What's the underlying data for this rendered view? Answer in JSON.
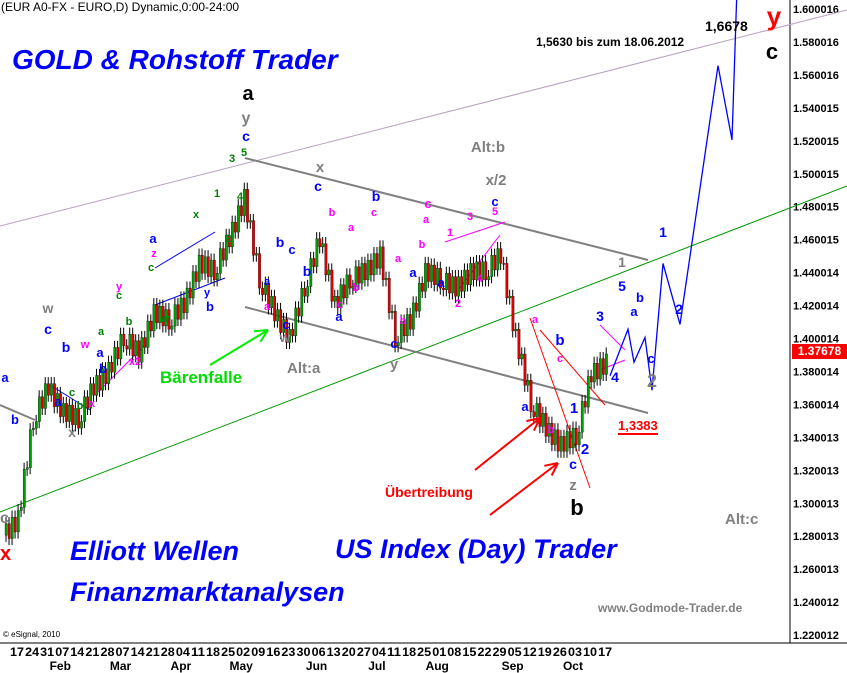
{
  "header": "(EUR A0-FX - EURO,D) Dynamic,0:00-24:00",
  "titles": {
    "main": "GOLD & Rohstoff Trader",
    "elliott": "Elliott Wellen",
    "finanz": "Finanzmarktanalysen",
    "usindex": "US Index (Day) Trader",
    "website": "www.Godmode-Trader.de",
    "copyright": "© eSignal, 2010"
  },
  "colors": {
    "up": "#00a000",
    "down": "#e00000",
    "wave_blue": "#0000ff",
    "magenta": "#ff00ff",
    "grey": "#808080",
    "green": "#008000",
    "channel": "#808080",
    "trend_green": "#009900",
    "projection": "#0000ff",
    "price_label_bg": "#ff0000"
  },
  "chart_data": {
    "type": "candlestick",
    "title": "(EUR A0-FX - EURO,D) Dynamic,0:00-24:00",
    "y_ticks": [
      "1.600016",
      "1.580016",
      "1.560016",
      "1.540015",
      "1.520015",
      "1.500015",
      "1.480015",
      "1.460015",
      "1.440014",
      "1.420014",
      "1.400014",
      "1.380014",
      "1.360014",
      "1.340013",
      "1.320013",
      "1.300013",
      "1.280013",
      "1.260013",
      "1.240012",
      "1.220012"
    ],
    "ylim": [
      1.220012,
      1.600016
    ],
    "x_day_ticks": [
      "17",
      "24",
      "31",
      "07",
      "14",
      "21",
      "28",
      "07",
      "14",
      "21",
      "28",
      "04",
      "11",
      "18",
      "25",
      "02",
      "09",
      "16",
      "23",
      "30",
      "06",
      "13",
      "20",
      "27",
      "04",
      "11",
      "18",
      "25",
      "01",
      "08",
      "15",
      "22",
      "29",
      "05",
      "12",
      "19",
      "26",
      "03",
      "10",
      "17"
    ],
    "x_month_labels": [
      {
        "label": "Feb",
        "tick": 3
      },
      {
        "label": "Mar",
        "tick": 7
      },
      {
        "label": "Apr",
        "tick": 11
      },
      {
        "label": "May",
        "tick": 15
      },
      {
        "label": "Jun",
        "tick": 20
      },
      {
        "label": "Jul",
        "tick": 24
      },
      {
        "label": "Aug",
        "tick": 28
      },
      {
        "label": "Sep",
        "tick": 33
      },
      {
        "label": "Oct",
        "tick": 37
      }
    ],
    "weekly_closes": [
      1.29,
      1.35,
      1.37,
      1.355,
      1.35,
      1.37,
      1.38,
      1.4,
      1.39,
      1.415,
      1.41,
      1.42,
      1.445,
      1.44,
      1.46,
      1.485,
      1.435,
      1.415,
      1.4,
      1.43,
      1.46,
      1.42,
      1.435,
      1.44,
      1.45,
      1.4,
      1.41,
      1.44,
      1.435,
      1.43,
      1.44,
      1.44,
      1.45,
      1.4,
      1.36,
      1.345,
      1.335,
      1.34,
      1.378,
      1.385
    ],
    "last_price": "1.37678",
    "projection": [
      1.37678,
      1.405,
      1.385,
      1.4,
      1.368,
      1.445,
      1.408,
      1.565,
      1.52,
      1.6678
    ],
    "price_marks": {
      "target": "1,6678",
      "target_note": "1,5630 bis zum 18.06.2012",
      "support": "1,3383"
    }
  },
  "annotations": [
    {
      "text": "a",
      "color": "#000000"
    },
    {
      "text": "y",
      "color": "#808080"
    },
    {
      "text": "c",
      "color": "#0000ff"
    },
    {
      "text": "5",
      "color": "#008000"
    },
    {
      "text": "3",
      "color": "#008000"
    },
    {
      "text": "4",
      "color": "#008000"
    },
    {
      "text": "1",
      "color": "#008000"
    },
    {
      "text": "2",
      "color": "#008000"
    },
    {
      "text": "x",
      "color": "#008000"
    },
    {
      "text": "a",
      "color": "#0000ff"
    },
    {
      "text": "z",
      "color": "#ff00ff"
    },
    {
      "text": "c",
      "color": "#008000"
    },
    {
      "text": "b",
      "color": "#0000ff"
    },
    {
      "text": "y",
      "color": "#0000ff"
    },
    {
      "text": "w",
      "color": "#008000"
    },
    {
      "text": "w",
      "color": "#808080"
    },
    {
      "text": "c",
      "color": "#0000ff"
    },
    {
      "text": "b",
      "color": "#0000ff"
    },
    {
      "text": "w",
      "color": "#ff00ff"
    },
    {
      "text": "a",
      "color": "#0000ff"
    },
    {
      "text": "b",
      "color": "#008000"
    },
    {
      "text": "c",
      "color": "#008000"
    },
    {
      "text": "x",
      "color": "#ff00ff"
    },
    {
      "text": "x",
      "color": "#808080"
    },
    {
      "text": "x2",
      "color": "#ff00ff"
    },
    {
      "text": "y",
      "color": "#ff00ff"
    },
    {
      "text": "c",
      "color": "#008000"
    },
    {
      "text": "a",
      "color": "#008000"
    },
    {
      "text": "b",
      "color": "#008000"
    },
    {
      "text": "b",
      "color": "#0000ff"
    },
    {
      "text": "a",
      "color": "#0000ff"
    },
    {
      "text": "b",
      "color": "#0000ff"
    },
    {
      "text": "a",
      "color": "#0000ff"
    },
    {
      "text": "x",
      "color": "#808080"
    },
    {
      "text": "c",
      "color": "#0000ff"
    },
    {
      "text": "b",
      "color": "#0000ff"
    },
    {
      "text": "b",
      "color": "#0000ff"
    },
    {
      "text": "c",
      "color": "#0000ff"
    },
    {
      "text": "a",
      "color": "#0000ff"
    },
    {
      "text": "c",
      "color": "#0000ff"
    },
    {
      "text": "w",
      "color": "#808080"
    },
    {
      "text": "a",
      "color": "#ff00ff"
    },
    {
      "text": "b",
      "color": "#ff00ff"
    },
    {
      "text": "a",
      "color": "#ff00ff"
    },
    {
      "text": "c",
      "color": "#ff00ff"
    },
    {
      "text": "b",
      "color": "#ff00ff"
    },
    {
      "text": "a",
      "color": "#0000ff"
    },
    {
      "text": "b",
      "color": "#0000ff"
    },
    {
      "text": "c",
      "color": "#ff00ff"
    },
    {
      "text": "a",
      "color": "#ff00ff"
    },
    {
      "text": "c",
      "color": "#0000ff"
    },
    {
      "text": "y",
      "color": "#808080"
    },
    {
      "text": "b",
      "color": "#ff00ff"
    },
    {
      "text": "a",
      "color": "#0000ff"
    },
    {
      "text": "b",
      "color": "#ff00ff"
    },
    {
      "text": "a",
      "color": "#ff00ff"
    },
    {
      "text": "c",
      "color": "#ff00ff"
    },
    {
      "text": "a",
      "color": "#0000ff"
    },
    {
      "text": "1",
      "color": "#ff00ff"
    },
    {
      "text": "2",
      "color": "#ff00ff"
    },
    {
      "text": "3",
      "color": "#ff00ff"
    },
    {
      "text": "4",
      "color": "#ff00ff"
    },
    {
      "text": "5",
      "color": "#ff00ff"
    },
    {
      "text": "c",
      "color": "#0000ff"
    },
    {
      "text": "x/2",
      "color": "#808080"
    },
    {
      "text": "Alt:b",
      "color": "#808080"
    },
    {
      "text": "a",
      "color": "#ff00ff"
    },
    {
      "text": "b",
      "color": "#0000ff"
    },
    {
      "text": "c",
      "color": "#ff00ff"
    },
    {
      "text": "a",
      "color": "#0000ff"
    },
    {
      "text": "b",
      "color": "#ff00ff"
    },
    {
      "text": "1",
      "color": "#0000ff"
    },
    {
      "text": "2",
      "color": "#0000ff"
    },
    {
      "text": "c",
      "color": "#0000ff"
    },
    {
      "text": "z",
      "color": "#808080"
    },
    {
      "text": "b",
      "color": "#000000"
    },
    {
      "text": "3",
      "color": "#0000ff"
    },
    {
      "text": "4",
      "color": "#0000ff"
    },
    {
      "text": "5",
      "color": "#0000ff"
    },
    {
      "text": "1",
      "color": "#808080"
    },
    {
      "text": "a",
      "color": "#0000ff"
    },
    {
      "text": "b",
      "color": "#0000ff"
    },
    {
      "text": "c",
      "color": "#0000ff"
    },
    {
      "text": "2",
      "color": "#808080"
    },
    {
      "text": "1",
      "color": "#0000ff"
    },
    {
      "text": "2",
      "color": "#0000ff"
    },
    {
      "text": "y",
      "color": "#ff0000"
    },
    {
      "text": "c",
      "color": "#000000"
    },
    {
      "text": "Alt:c",
      "color": "#808080"
    },
    {
      "text": "Alt:a",
      "color": "#808080"
    },
    {
      "text": "Bärenfalle",
      "color": "#00dd00"
    },
    {
      "text": "Übertreibung",
      "color": "#ff0000"
    },
    {
      "text": "c",
      "color": "#808080"
    },
    {
      "text": "x",
      "color": "#ff0000"
    }
  ]
}
